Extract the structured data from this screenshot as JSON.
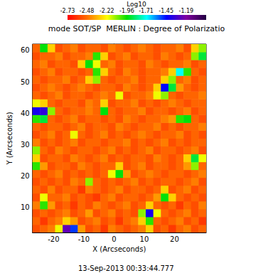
{
  "chart_data": {
    "type": "heatmap",
    "title": "mode SOT/SP  MERLIN : Degree of Polarizatio",
    "x_label": "X (Arcseconds)",
    "y_label": "Y (Arcseconds)",
    "annotations": [
      "13-Sep-2013 00:33:44.777"
    ],
    "xlim": [
      -27,
      30.5
    ],
    "xticks": [
      -20,
      -10,
      0,
      10,
      20
    ],
    "ylim": [
      2,
      62
    ],
    "yticks": [
      10,
      20,
      30,
      40,
      50,
      60
    ],
    "colorbar": {
      "title": "Log10",
      "range": [
        -2.73,
        -0.93
      ],
      "ticks": [
        -2.73,
        -2.48,
        -2.22,
        -1.96,
        -1.71,
        -1.45,
        -1.19
      ]
    },
    "x": [
      -25.75,
      -23.25,
      -20.75,
      -18.25,
      -15.75,
      -13.25,
      -10.75,
      -8.25,
      -5.75,
      -3.25,
      -0.75,
      1.75,
      4.25,
      6.75,
      9.25,
      11.75,
      14.25,
      16.75,
      19.25,
      21.75,
      24.25,
      26.75,
      29.25
    ],
    "y": [
      3.25,
      5.75,
      8.25,
      10.75,
      13.25,
      15.75,
      18.25,
      20.75,
      23.25,
      25.75,
      28.25,
      30.75,
      33.25,
      35.75,
      38.25,
      40.75,
      43.25,
      45.75,
      48.25,
      50.75,
      53.25,
      55.75,
      58.25,
      60.75
    ],
    "cells": [
      [
        -2.55,
        -2.5,
        -2.45,
        -2.2,
        -1.25,
        -1.5,
        -2.4,
        -2.55,
        -2.5,
        -2.6,
        -2.45,
        -2.5,
        -2.55,
        -2.5,
        -2.45,
        -2.3,
        -2.55,
        -2.5,
        -2.6,
        -2.5,
        -2.45,
        -2.55,
        -2.5
      ],
      [
        -2.5,
        -2.6,
        -2.5,
        -2.45,
        -2.3,
        -2.4,
        -2.55,
        -2.5,
        -2.45,
        -2.55,
        -2.5,
        -2.6,
        -2.5,
        -2.45,
        -2.3,
        -2.0,
        -2.5,
        -2.55,
        -2.5,
        -2.45,
        -2.55,
        -2.5,
        -2.6
      ],
      [
        -2.55,
        -2.5,
        -2.55,
        -2.5,
        -2.45,
        -2.55,
        -2.5,
        -2.4,
        -2.55,
        -2.5,
        -2.45,
        -2.55,
        -2.5,
        -2.55,
        -2.1,
        -1.4,
        -2.2,
        -2.5,
        -2.55,
        -2.5,
        -2.45,
        -2.55,
        -2.5
      ],
      [
        -2.45,
        -2.0,
        -2.4,
        -2.55,
        -2.5,
        -2.6,
        -2.5,
        -2.55,
        -2.45,
        -2.5,
        -2.55,
        -2.5,
        -2.45,
        -2.55,
        -2.5,
        -2.3,
        -2.5,
        -2.55,
        -2.5,
        -2.6,
        -2.5,
        -2.55,
        -2.45
      ],
      [
        -2.55,
        -2.2,
        -2.5,
        -2.5,
        -2.45,
        -2.55,
        -2.5,
        -2.55,
        -2.6,
        -2.5,
        -2.45,
        -2.55,
        -2.5,
        -2.5,
        -2.55,
        -2.5,
        -2.4,
        -1.95,
        -2.3,
        -2.5,
        -2.55,
        -2.5,
        -2.55
      ],
      [
        -2.5,
        -2.55,
        -2.45,
        -2.55,
        -2.5,
        -2.5,
        -2.6,
        -2.45,
        -2.5,
        -2.55,
        -2.5,
        -2.45,
        -2.55,
        -2.5,
        -2.5,
        -2.55,
        -2.5,
        -2.3,
        -2.55,
        -2.5,
        -2.45,
        -2.55,
        -2.5
      ],
      [
        -2.55,
        -2.5,
        -2.55,
        -2.5,
        -2.55,
        -2.45,
        -2.5,
        -2.1,
        -2.5,
        -2.55,
        -2.5,
        -2.55,
        -2.5,
        -2.45,
        -2.55,
        -2.5,
        -2.55,
        -2.5,
        -2.5,
        -2.55,
        -2.5,
        -2.45,
        -2.55
      ],
      [
        -2.5,
        -2.55,
        -2.5,
        -2.45,
        -2.55,
        -2.5,
        -2.55,
        -2.5,
        -2.55,
        -2.5,
        -2.2,
        -1.95,
        -2.4,
        -2.55,
        -2.5,
        -2.45,
        -2.5,
        -2.55,
        -2.5,
        -2.5,
        -2.55,
        -2.5,
        -2.45
      ],
      [
        -2.0,
        -2.4,
        -2.55,
        -2.5,
        -2.5,
        -2.55,
        -2.45,
        -2.5,
        -2.55,
        -2.5,
        -2.5,
        -2.3,
        -2.55,
        -2.5,
        -2.45,
        -2.55,
        -2.5,
        -2.5,
        -2.55,
        -2.5,
        -2.4,
        -2.1,
        -2.5
      ],
      [
        -2.3,
        -2.55,
        -2.5,
        -2.5,
        -2.55,
        -2.45,
        -2.5,
        -2.55,
        -2.5,
        -2.45,
        -2.55,
        -2.5,
        -2.55,
        -2.5,
        -2.5,
        -2.55,
        -2.45,
        -2.5,
        -2.55,
        -2.5,
        -2.3,
        -1.9,
        -2.2
      ],
      [
        -2.1,
        -2.5,
        -2.55,
        -2.45,
        -2.5,
        -2.55,
        -2.5,
        -2.5,
        -2.55,
        -2.5,
        -2.45,
        -2.55,
        -2.5,
        -2.55,
        -2.5,
        -2.45,
        -2.55,
        -2.5,
        -2.5,
        -2.55,
        -2.5,
        -2.45,
        -2.55
      ],
      [
        -2.45,
        -2.55,
        -2.5,
        -2.55,
        -2.5,
        -2.45,
        -2.55,
        -2.5,
        -2.5,
        -2.55,
        -2.5,
        -2.5,
        -2.45,
        -2.55,
        -2.5,
        -2.55,
        -2.5,
        -2.45,
        -2.55,
        -2.5,
        -2.55,
        -2.5,
        -2.5
      ],
      [
        -2.55,
        -2.5,
        -2.45,
        -2.55,
        -2.5,
        -2.2,
        -2.5,
        -2.55,
        -2.5,
        -2.45,
        -2.55,
        -2.5,
        -2.55,
        -2.5,
        -2.45,
        -2.5,
        -2.55,
        -2.5,
        -2.5,
        -2.45,
        -2.55,
        -2.5,
        -2.55
      ],
      [
        -2.5,
        -2.55,
        -2.5,
        -2.5,
        -2.55,
        -2.5,
        -2.45,
        -2.55,
        -2.5,
        -2.5,
        -2.55,
        -2.45,
        -2.5,
        -2.55,
        -2.5,
        -2.5,
        -2.45,
        -2.55,
        -2.5,
        -2.55,
        -2.5,
        -2.5,
        -2.45
      ],
      [
        -2.0,
        -1.9,
        -2.5,
        -2.55,
        -2.5,
        -2.45,
        -2.55,
        -2.5,
        -2.5,
        -2.55,
        -2.5,
        -2.55,
        -2.45,
        -2.5,
        -2.55,
        -2.5,
        -2.5,
        -2.45,
        -2.4,
        -2.0,
        -1.95,
        -2.5,
        -2.55
      ],
      [
        -1.4,
        -1.35,
        -2.1,
        -2.5,
        -2.55,
        -2.5,
        -2.5,
        -2.45,
        -2.5,
        -1.95,
        -2.5,
        -2.55,
        -2.5,
        -2.5,
        -2.45,
        -2.55,
        -2.5,
        -2.5,
        -2.55,
        -2.5,
        -2.45,
        -2.55,
        -2.5
      ],
      [
        -2.2,
        -2.3,
        -2.5,
        -2.55,
        -2.5,
        -2.5,
        -2.55,
        -2.45,
        -2.5,
        -2.3,
        -2.55,
        -2.5,
        -2.5,
        -2.45,
        -2.55,
        -2.5,
        -2.55,
        -2.5,
        -2.45,
        -2.5,
        -2.55,
        -2.5,
        -2.5
      ],
      [
        -2.5,
        -2.55,
        -2.5,
        -2.45,
        -2.55,
        -2.5,
        -2.5,
        -2.55,
        -2.5,
        -2.45,
        -2.5,
        -2.2,
        -2.55,
        -2.5,
        -2.5,
        -2.45,
        -2.2,
        -2.1,
        -2.5,
        -2.55,
        -2.5,
        -2.5,
        -2.45
      ],
      [
        -2.55,
        -2.5,
        -2.45,
        -2.5,
        -2.55,
        -2.5,
        -2.45,
        -2.5,
        -2.55,
        -2.5,
        -2.5,
        -2.55,
        -2.45,
        -2.5,
        -2.55,
        -2.5,
        -2.3,
        -1.45,
        -1.9,
        -2.4,
        -2.5,
        -2.55,
        -2.5
      ],
      [
        -2.5,
        -2.55,
        -2.5,
        -2.5,
        -2.45,
        -2.55,
        -2.5,
        -2.3,
        -2.1,
        -2.5,
        -2.55,
        -2.5,
        -2.5,
        -2.45,
        -2.55,
        -2.5,
        -2.5,
        -2.3,
        -2.1,
        -2.5,
        -2.45,
        -2.55,
        -2.5
      ],
      [
        -2.55,
        -2.5,
        -2.45,
        -2.55,
        -2.5,
        -2.5,
        -2.55,
        -2.5,
        -2.0,
        -2.3,
        -2.5,
        -2.55,
        -2.45,
        -2.5,
        -2.55,
        -2.5,
        -2.5,
        -2.45,
        -2.3,
        -1.7,
        -2.0,
        -2.5,
        -2.55
      ],
      [
        -2.5,
        -2.45,
        -2.55,
        -2.5,
        -2.5,
        -2.55,
        -2.3,
        -1.95,
        -2.2,
        -2.5,
        -2.45,
        -2.55,
        -2.5,
        -2.5,
        -2.55,
        -2.45,
        -2.5,
        -2.55,
        -2.5,
        -2.5,
        -2.45,
        -2.55,
        -2.5
      ],
      [
        -2.55,
        -2.5,
        -2.5,
        -2.45,
        -2.55,
        -2.5,
        -2.5,
        -2.45,
        -2.0,
        -2.3,
        -2.55,
        -2.5,
        -2.45,
        -2.55,
        -2.5,
        -2.5,
        -2.55,
        -2.45,
        -2.5,
        -2.55,
        -2.5,
        -2.1,
        -1.9
      ],
      [
        -2.5,
        -1.95,
        -2.3,
        -2.55,
        -2.5,
        -2.45,
        -2.55,
        -2.5,
        -2.5,
        -2.55,
        -2.45,
        -2.5,
        -2.55,
        -2.5,
        -2.45,
        -2.5,
        -2.55,
        -2.5,
        -2.5,
        -2.45,
        -2.55,
        -2.3,
        -2.1
      ]
    ]
  }
}
